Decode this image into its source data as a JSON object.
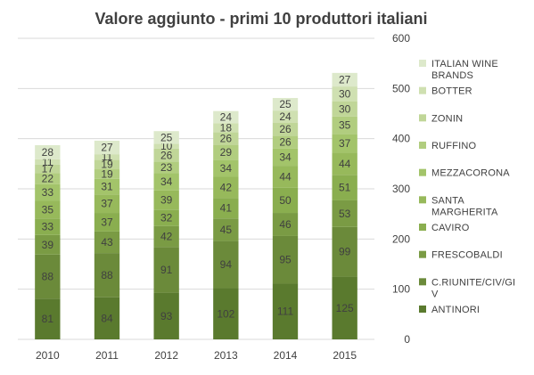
{
  "chart_data": {
    "type": "bar",
    "stacked": true,
    "title": "Valore aggiunto  - primi 10 produttori italiani",
    "categories": [
      "2010",
      "2011",
      "2012",
      "2013",
      "2014",
      "2015"
    ],
    "ylim": [
      0,
      600
    ],
    "yticks": [
      0,
      100,
      200,
      300,
      400,
      500,
      600
    ],
    "y_axis_position": "right",
    "grid": true,
    "legend_position": "right",
    "series": [
      {
        "name": "ANTINORI",
        "color": "#5a7a2e",
        "values": [
          81,
          84,
          93,
          102,
          111,
          125
        ]
      },
      {
        "name": "C.RIUNITE/CIV/GIV",
        "color": "#6b8a3a",
        "values": [
          88,
          88,
          91,
          94,
          95,
          99
        ]
      },
      {
        "name": "FRESCOBALDI",
        "color": "#7a9b44",
        "values": [
          39,
          43,
          42,
          45,
          46,
          53
        ]
      },
      {
        "name": "CAVIRO",
        "color": "#8aae4f",
        "values": [
          33,
          37,
          32,
          41,
          50,
          51
        ]
      },
      {
        "name": "SANTA MARGHERITA",
        "color": "#97b95b",
        "values": [
          35,
          37,
          39,
          42,
          44,
          44
        ]
      },
      {
        "name": "MEZZACORONA",
        "color": "#a3c46a",
        "values": [
          33,
          31,
          34,
          34,
          34,
          37
        ]
      },
      {
        "name": "RUFFINO",
        "color": "#b1cd7f",
        "values": [
          22,
          19,
          23,
          29,
          26,
          35
        ]
      },
      {
        "name": "ZONIN",
        "color": "#c0d698",
        "values": [
          17,
          19,
          26,
          26,
          26,
          30
        ]
      },
      {
        "name": "BOTTER",
        "color": "#cfe0b1",
        "values": [
          11,
          11,
          10,
          18,
          24,
          30
        ]
      },
      {
        "name": "ITALIAN WINE BRANDS",
        "color": "#dde9cb",
        "values": [
          28,
          27,
          25,
          24,
          25,
          27
        ]
      }
    ]
  }
}
